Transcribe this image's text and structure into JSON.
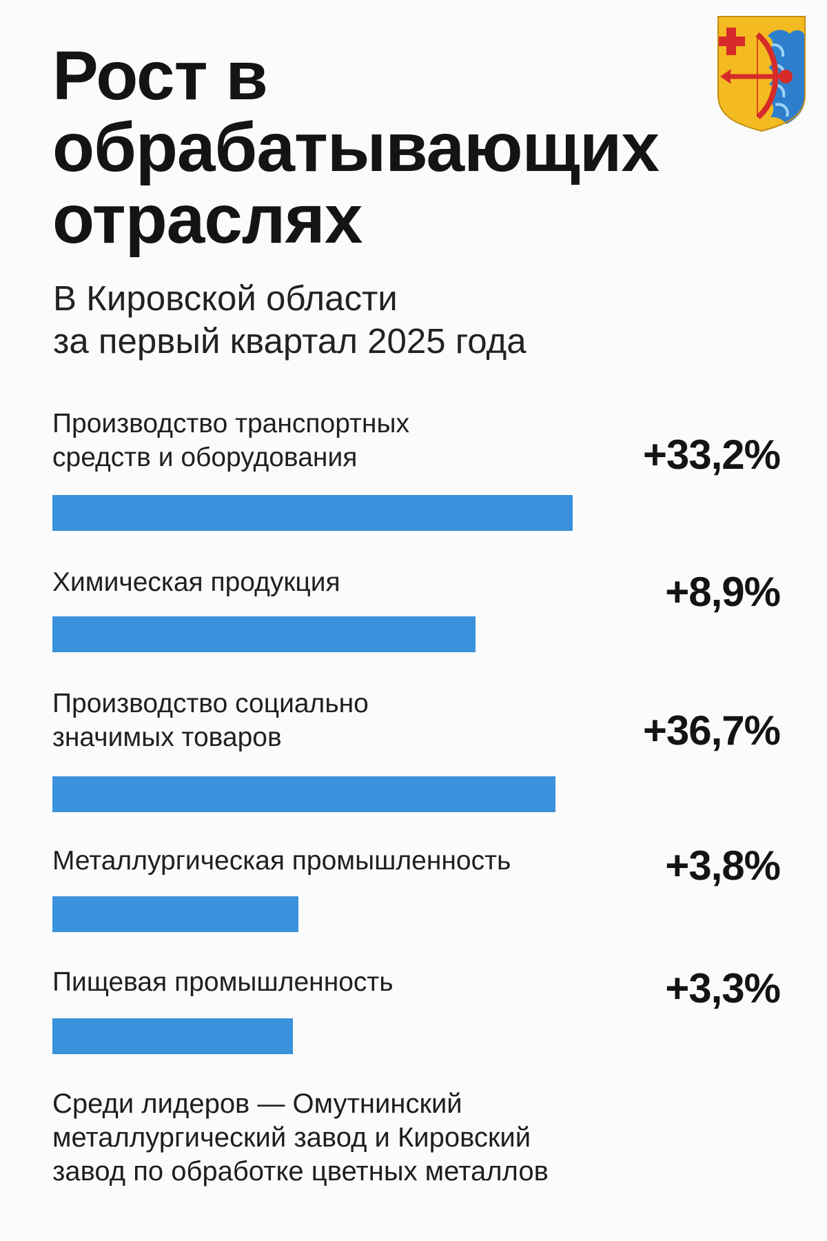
{
  "header": {
    "title": "Рост в\nобрабатывающих\nотраслях",
    "subtitle": "В Кировской области\nза первый квартал 2025 года",
    "emblem_icon": "kirov-oblast-coat-of-arms-icon"
  },
  "chart_data": {
    "type": "bar",
    "orientation": "horizontal",
    "categories": [
      "Производство транспортных\nсредств и оборудования",
      "Химическая продукция",
      "Производство социально\nзначимых товаров",
      "Металлургическая промышленность",
      "Пищевая промышленность"
    ],
    "values": [
      33.2,
      8.9,
      36.7,
      3.8,
      3.3
    ],
    "value_labels": [
      "+33,2%",
      "+8,9%",
      "+36,7%",
      "+3,8%",
      "+3,3%"
    ],
    "bar_fill_fractions": [
      0.91,
      0.74,
      0.88,
      0.43,
      0.42
    ],
    "title": "",
    "xlabel": "",
    "ylabel": "",
    "grid": false,
    "legend": "none",
    "bar_color": "#3a92dc"
  },
  "footer": {
    "note": "Среди лидеров — Омутнинский\nметаллургический завод и Кировский\nзавод по обработке цветных металлов"
  },
  "colors": {
    "background": "#fbfbfb",
    "text": "#141414",
    "bar": "#3a92dc",
    "emblem_yellow": "#f4ba22",
    "emblem_red": "#d62b28",
    "emblem_blue": "#2d7fcd"
  }
}
